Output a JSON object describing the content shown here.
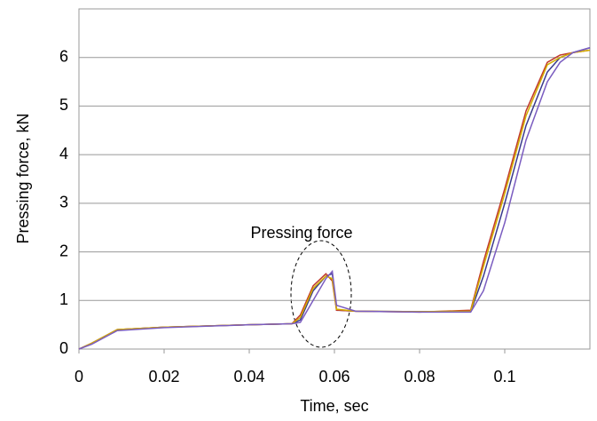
{
  "chart_data": {
    "type": "line",
    "x_label": "Time, sec",
    "y_label": "Pressing force, kN",
    "annotation": "Pressing force",
    "x": [
      0,
      0.003,
      0.009,
      0.02,
      0.04,
      0.05,
      0.052,
      0.055,
      0.058,
      0.0595,
      0.0605,
      0.065,
      0.08,
      0.092,
      0.095,
      0.1,
      0.105,
      0.11,
      0.113,
      0.116,
      0.12
    ],
    "series": [
      {
        "color": "#3a3a8c",
        "values": [
          0,
          0.12,
          0.4,
          0.45,
          0.5,
          0.52,
          0.6,
          1.2,
          1.5,
          1.55,
          0.8,
          0.78,
          0.77,
          0.77,
          1.5,
          3.0,
          4.6,
          5.7,
          6.0,
          6.1,
          6.2
        ]
      },
      {
        "color": "#c0392b",
        "values": [
          0,
          0.12,
          0.4,
          0.45,
          0.5,
          0.52,
          0.7,
          1.3,
          1.55,
          1.4,
          0.8,
          0.78,
          0.76,
          0.8,
          1.8,
          3.3,
          4.9,
          5.9,
          6.05,
          6.1,
          6.15
        ]
      },
      {
        "color": "#d4b000",
        "values": [
          0,
          0.12,
          0.4,
          0.45,
          0.5,
          0.52,
          0.65,
          1.25,
          1.5,
          1.45,
          0.82,
          0.78,
          0.77,
          0.78,
          1.7,
          3.2,
          4.8,
          5.85,
          6.0,
          6.1,
          6.15
        ]
      },
      {
        "color": "#7a5cc0",
        "values": [
          0,
          0.1,
          0.38,
          0.44,
          0.5,
          0.52,
          0.55,
          1.0,
          1.45,
          1.6,
          0.9,
          0.78,
          0.76,
          0.76,
          1.2,
          2.6,
          4.3,
          5.5,
          5.9,
          6.1,
          6.2
        ]
      }
    ],
    "xlim": [
      0,
      0.12
    ],
    "xticks": [
      0,
      0.02,
      0.04,
      0.06,
      0.08,
      0.1
    ],
    "ylim": [
      0,
      7
    ],
    "yticks": [
      0,
      1,
      2,
      3,
      4,
      5,
      6
    ],
    "grid": true
  }
}
